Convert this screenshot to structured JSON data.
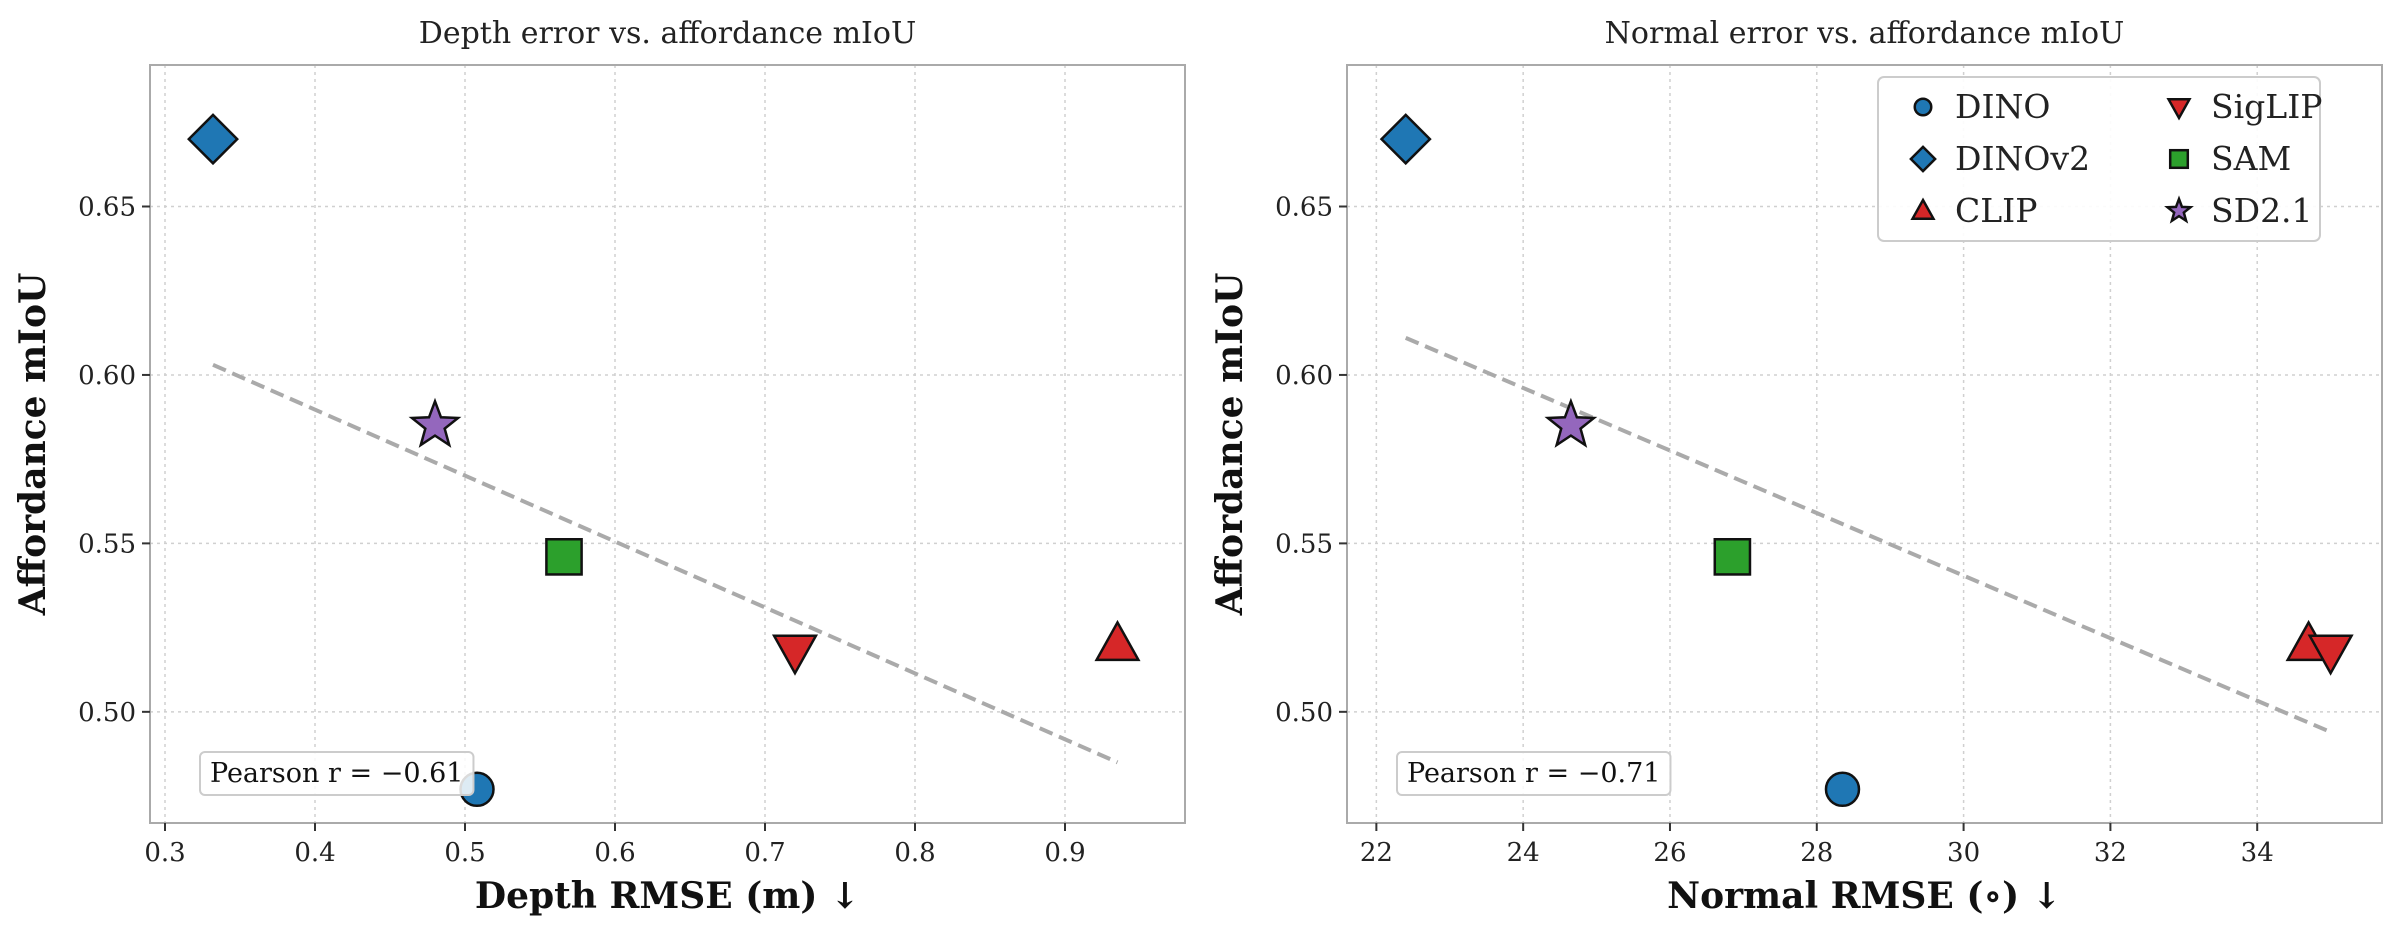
{
  "chart_data": [
    {
      "type": "scatter",
      "title": "Depth error vs. affordance mIoU",
      "xlabel": "Depth RMSE (m)  ↓",
      "ylabel": "Affordance mIoU",
      "xlim": [
        0.29,
        0.98
      ],
      "ylim": [
        0.467,
        0.692
      ],
      "xticks": [
        "0.3",
        "0.4",
        "0.5",
        "0.6",
        "0.7",
        "0.8",
        "0.9"
      ],
      "yticks": [
        "0.50",
        "0.55",
        "0.60",
        "0.65"
      ],
      "grid": true,
      "series": [
        {
          "name": "DINO",
          "x": 0.508,
          "y": 0.477
        },
        {
          "name": "DINOv2",
          "x": 0.332,
          "y": 0.67
        },
        {
          "name": "CLIP",
          "x": 0.935,
          "y": 0.52
        },
        {
          "name": "SigLIP",
          "x": 0.72,
          "y": 0.518
        },
        {
          "name": "SAM",
          "x": 0.566,
          "y": 0.546
        },
        {
          "name": "SD2.1",
          "x": 0.48,
          "y": 0.585
        }
      ],
      "trendline": {
        "x": [
          0.332,
          0.935
        ],
        "y": [
          0.603,
          0.485
        ]
      },
      "annotation": "Pearson r = −0.61"
    },
    {
      "type": "scatter",
      "title": "Normal error vs. affordance mIoU",
      "xlabel": "Normal RMSE (∘)  ↓",
      "ylabel": "Affordance mIoU",
      "xlim": [
        21.6,
        35.7
      ],
      "ylim": [
        0.467,
        0.692
      ],
      "xticks": [
        "22",
        "24",
        "26",
        "28",
        "30",
        "32",
        "34"
      ],
      "yticks": [
        "0.50",
        "0.55",
        "0.60",
        "0.65"
      ],
      "grid": true,
      "legend_position": "top-right",
      "series": [
        {
          "name": "DINO",
          "x": 28.35,
          "y": 0.477
        },
        {
          "name": "DINOv2",
          "x": 22.4,
          "y": 0.67
        },
        {
          "name": "CLIP",
          "x": 34.7,
          "y": 0.52
        },
        {
          "name": "SigLIP",
          "x": 35.0,
          "y": 0.518
        },
        {
          "name": "SAM",
          "x": 26.85,
          "y": 0.546
        },
        {
          "name": "SD2.1",
          "x": 24.65,
          "y": 0.585
        }
      ],
      "trendline": {
        "x": [
          22.4,
          35.0
        ],
        "y": [
          0.611,
          0.494
        ]
      },
      "annotation": "Pearson r = −0.71"
    }
  ],
  "legend": [
    {
      "name": "DINO",
      "marker": "circle",
      "color": "#1f77b4"
    },
    {
      "name": "SigLIP",
      "marker": "triangle-down",
      "color": "#d62728"
    },
    {
      "name": "DINOv2",
      "marker": "diamond",
      "color": "#1f77b4"
    },
    {
      "name": "SAM",
      "marker": "square",
      "color": "#2ca02c"
    },
    {
      "name": "CLIP",
      "marker": "triangle-up",
      "color": "#d62728"
    },
    {
      "name": "SD2.1",
      "marker": "star",
      "color": "#9467bd"
    }
  ],
  "markers": {
    "DINO": {
      "shape": "circle",
      "color": "#1f77b4"
    },
    "DINOv2": {
      "shape": "diamond",
      "color": "#1f77b4"
    },
    "CLIP": {
      "shape": "triangle-up",
      "color": "#d62728"
    },
    "SigLIP": {
      "shape": "triangle-down",
      "color": "#d62728"
    },
    "SAM": {
      "shape": "square",
      "color": "#2ca02c"
    },
    "SD2.1": {
      "shape": "star",
      "color": "#9467bd"
    }
  },
  "colors": {
    "trendline": "#aaaaaa",
    "grid": "#d0d0d0",
    "frame": "#aaaaaa"
  }
}
